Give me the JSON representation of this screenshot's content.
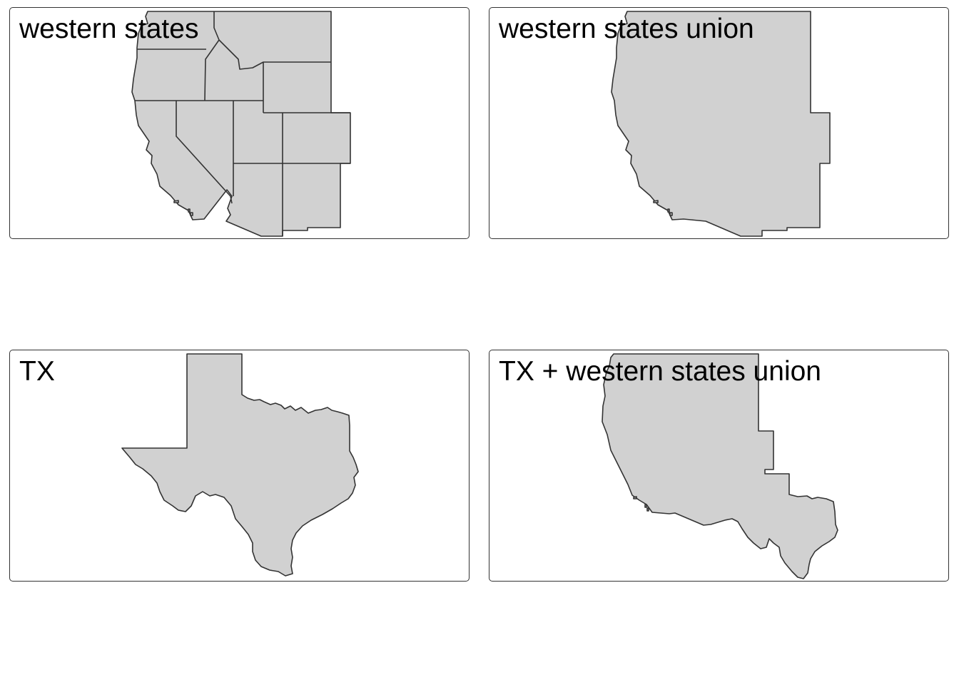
{
  "panels": [
    {
      "title": "western states"
    },
    {
      "title": "western states union"
    },
    {
      "title": "TX"
    },
    {
      "title": "TX + western states union"
    }
  ],
  "colors": {
    "fill": "#d1d1d1",
    "stroke": "#333333",
    "panel_border": "#333333",
    "background": "#ffffff",
    "text": "#000000"
  }
}
